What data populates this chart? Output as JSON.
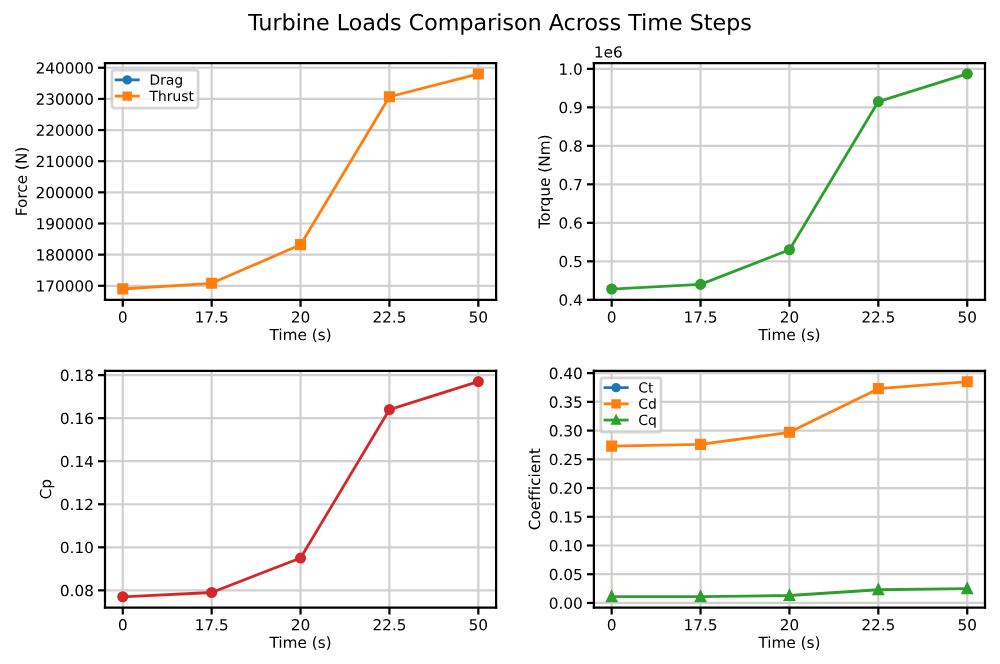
{
  "chart_data": [
    {
      "type": "line",
      "title": "Turbine Loads Comparison Across Time Steps",
      "xlabel": "Time (s)",
      "ylabel": "Force (N)",
      "categories": [
        "0",
        "17.5",
        "20",
        "22.5",
        "50"
      ],
      "series": [
        {
          "name": "Drag",
          "color": "#1f77b4",
          "marker": "circle",
          "values": [
            null,
            null,
            null,
            null,
            null
          ]
        },
        {
          "name": "Thrust",
          "color": "#ff7f0e",
          "marker": "square",
          "values": [
            169000,
            170800,
            183200,
            230700,
            238000
          ]
        }
      ],
      "ylim": [
        165500,
        241500
      ],
      "yticks": [
        170000,
        180000,
        190000,
        200000,
        210000,
        220000,
        230000,
        240000
      ],
      "grid": true,
      "legend": "top left"
    },
    {
      "type": "line",
      "xlabel": "Time (s)",
      "ylabel": "Torque (Nm)",
      "categories": [
        "0",
        "17.5",
        "20",
        "22.5",
        "50"
      ],
      "series": [
        {
          "color": "#2ca02c",
          "marker": "circle",
          "values": [
            0.428,
            0.44,
            0.53,
            0.915,
            0.987
          ]
        }
      ],
      "ylim": [
        0.4,
        1.015
      ],
      "yticks": [
        0.4,
        0.5,
        0.6,
        0.7,
        0.8,
        0.9,
        {
          "value": 1.0,
          "label": "1.0"
        }
      ],
      "grid": true,
      "annotations": [
        "1e6"
      ]
    },
    {
      "type": "line",
      "xlabel": "Time (s)",
      "ylabel": "Cp",
      "categories": [
        "0",
        "17.5",
        "20",
        "22.5",
        "50"
      ],
      "series": [
        {
          "color": "#d62728",
          "marker": "circle",
          "values": [
            0.077,
            0.079,
            0.095,
            0.164,
            0.177
          ]
        }
      ],
      "ylim": [
        0.072,
        0.182
      ],
      "yticks": [
        {
          "value": 0.08,
          "label": "0.08"
        },
        {
          "value": 0.1,
          "label": "0.10"
        },
        {
          "value": 0.12,
          "label": "0.12"
        },
        {
          "value": 0.14,
          "label": "0.14"
        },
        {
          "value": 0.16,
          "label": "0.16"
        },
        {
          "value": 0.18,
          "label": "0.18"
        }
      ],
      "grid": true
    },
    {
      "type": "line",
      "xlabel": "Time (s)",
      "ylabel": "Coefficient",
      "categories": [
        "0",
        "17.5",
        "20",
        "22.5",
        "50"
      ],
      "series": [
        {
          "name": "Ct",
          "color": "#1f77b4",
          "marker": "circle",
          "values": [
            null,
            null,
            null,
            null,
            null
          ]
        },
        {
          "name": "Cd",
          "color": "#ff7f0e",
          "marker": "square",
          "values": [
            0.273,
            0.276,
            0.297,
            0.373,
            0.385
          ]
        },
        {
          "name": "Cq",
          "color": "#2ca02c",
          "marker": "triangle",
          "values": [
            0.011,
            0.011,
            0.013,
            0.023,
            0.025
          ]
        }
      ],
      "ylim": [
        -0.008,
        0.404
      ],
      "yticks": [
        {
          "value": 0,
          "label": "0.00"
        },
        {
          "value": 0.05,
          "label": "0.05"
        },
        {
          "value": 0.1,
          "label": "0.10"
        },
        {
          "value": 0.15,
          "label": "0.15"
        },
        {
          "value": 0.2,
          "label": "0.20"
        },
        {
          "value": 0.25,
          "label": "0.25"
        },
        {
          "value": 0.3,
          "label": "0.30"
        },
        {
          "value": 0.35,
          "label": "0.35"
        },
        {
          "value": 0.4,
          "label": "0.40"
        }
      ],
      "grid": true,
      "legend": "top left"
    }
  ]
}
